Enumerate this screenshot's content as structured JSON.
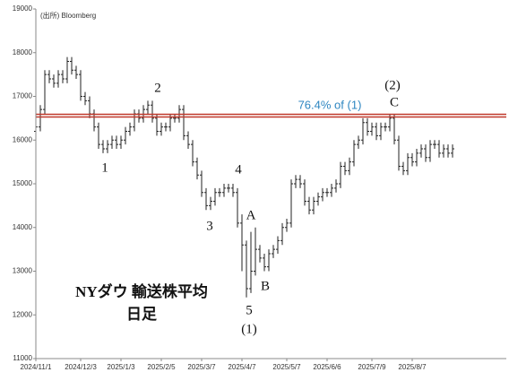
{
  "chart_data": {
    "type": "ohlc",
    "title": "NYダウ 輸送株平均",
    "subtitle": "日足",
    "source": "(出所) Bloomberg",
    "annotations": [
      "1",
      "2",
      "3",
      "4",
      "5",
      "(1)",
      "A",
      "B",
      "(2)",
      "C"
    ],
    "reference_line": {
      "value": 16560,
      "label": "76.4% of (1)",
      "color": "#c0392b",
      "label_color": "#2e86c1"
    },
    "color": "#222222",
    "ylim": [
      11000,
      19000
    ],
    "yticks": [
      11000,
      12000,
      13000,
      14000,
      15000,
      16000,
      17000,
      18000,
      19000
    ],
    "categories": [
      "2024/11/1",
      null,
      null,
      null,
      null,
      null,
      null,
      null,
      null,
      null,
      "2024/12/3",
      null,
      null,
      null,
      null,
      null,
      null,
      null,
      null,
      "2025/1/3",
      null,
      null,
      null,
      null,
      null,
      null,
      null,
      null,
      "2025/2/5",
      null,
      null,
      null,
      null,
      null,
      null,
      null,
      null,
      "2025/3/7",
      null,
      null,
      null,
      null,
      null,
      null,
      null,
      null,
      "2025/4/7",
      null,
      null,
      null,
      null,
      null,
      null,
      null,
      null,
      null,
      "2025/5/7",
      null,
      null,
      null,
      null,
      null,
      null,
      null,
      null,
      "2025/6/6",
      null,
      null,
      null,
      null,
      null,
      null,
      null,
      null,
      null,
      "2025/7/9",
      null,
      null,
      null,
      null,
      null,
      null,
      null,
      null,
      "2025/8/7",
      null,
      null,
      null,
      null,
      null,
      null,
      null,
      null,
      null
    ],
    "open": [
      16200,
      16300,
      16700,
      17500,
      17400,
      17300,
      17500,
      17400,
      17800,
      17600,
      17500,
      17000,
      16900,
      16600,
      16300,
      15900,
      15800,
      15900,
      16000,
      15900,
      16000,
      16200,
      16300,
      16600,
      16500,
      16700,
      16800,
      16500,
      16200,
      16300,
      16300,
      16500,
      16500,
      16700,
      16100,
      15900,
      15500,
      15200,
      14800,
      14500,
      14600,
      14800,
      14800,
      14900,
      14900,
      14800,
      14100,
      13600,
      12600,
      13000,
      13500,
      13300,
      13100,
      13400,
      13500,
      13700,
      14000,
      14100,
      15000,
      15100,
      15000,
      14600,
      14400,
      14600,
      14700,
      14800,
      14800,
      14900,
      15000,
      15400,
      15300,
      15500,
      15900,
      16000,
      16400,
      16200,
      16300,
      16100,
      16300,
      16300,
      16500,
      16000,
      15400,
      15300,
      15600,
      15500,
      15700,
      15800,
      15600,
      15900,
      15900,
      15700,
      15800,
      15700
    ],
    "high": [
      16400,
      16800,
      17600,
      17600,
      17500,
      17600,
      17600,
      17900,
      17900,
      17700,
      17600,
      17100,
      17000,
      16700,
      16400,
      16000,
      16000,
      16100,
      16100,
      16100,
      16300,
      16400,
      16700,
      16700,
      16800,
      16900,
      16900,
      16600,
      16400,
      16400,
      16600,
      16600,
      16800,
      16800,
      16200,
      16000,
      15600,
      15300,
      14900,
      14700,
      14900,
      14900,
      15000,
      15000,
      15000,
      14900,
      14300,
      13700,
      13900,
      14000,
      13600,
      13400,
      13500,
      13600,
      13800,
      14100,
      14200,
      15100,
      15200,
      15200,
      15100,
      14700,
      14700,
      14800,
      14900,
      14900,
      15000,
      15100,
      15500,
      15500,
      15600,
      16000,
      16100,
      16500,
      16500,
      16400,
      16400,
      16400,
      16400,
      16600,
      16600,
      16100,
      15500,
      15700,
      15700,
      15800,
      15900,
      15900,
      16000,
      16000,
      16000,
      15900,
      15900,
      15900
    ],
    "low": [
      16100,
      16200,
      16600,
      17300,
      17200,
      17200,
      17300,
      17300,
      17500,
      17400,
      16900,
      16800,
      16500,
      16200,
      15800,
      15700,
      15700,
      15800,
      15800,
      15800,
      15900,
      16100,
      16200,
      16400,
      16400,
      16600,
      16400,
      16100,
      16100,
      16200,
      16200,
      16400,
      16400,
      16000,
      15800,
      15400,
      15100,
      14700,
      14400,
      14400,
      14500,
      14700,
      14700,
      14800,
      14700,
      14000,
      13000,
      12400,
      12500,
      12900,
      13200,
      13000,
      13000,
      13300,
      13400,
      13600,
      13900,
      14000,
      14900,
      14900,
      14500,
      14300,
      14300,
      14500,
      14600,
      14700,
      14700,
      14800,
      14900,
      15200,
      15200,
      15400,
      15800,
      15900,
      16100,
      16100,
      16000,
      16000,
      16200,
      16200,
      15900,
      15300,
      15200,
      15200,
      15400,
      15400,
      15600,
      15500,
      15500,
      15800,
      15600,
      15600,
      15600,
      15600
    ],
    "close": [
      16300,
      16700,
      17500,
      17400,
      17300,
      17500,
      17400,
      17800,
      17600,
      17500,
      17000,
      16900,
      16600,
      16300,
      15900,
      15800,
      15900,
      16000,
      15900,
      16000,
      16200,
      16300,
      16600,
      16500,
      16700,
      16800,
      16500,
      16200,
      16300,
      16300,
      16500,
      16500,
      16700,
      16100,
      15900,
      15500,
      15200,
      14800,
      14500,
      14600,
      14800,
      14800,
      14900,
      14900,
      14800,
      14100,
      13600,
      12600,
      13000,
      13500,
      13300,
      13100,
      13400,
      13500,
      13700,
      14000,
      14100,
      15000,
      15100,
      15000,
      14600,
      14400,
      14600,
      14700,
      14800,
      14800,
      14900,
      15000,
      15400,
      15300,
      15500,
      15900,
      16000,
      16400,
      16200,
      16300,
      16100,
      16300,
      16300,
      16500,
      16000,
      15400,
      15300,
      15600,
      15500,
      15700,
      15800,
      15600,
      15900,
      15900,
      15700,
      15800,
      15700,
      15800
    ]
  }
}
